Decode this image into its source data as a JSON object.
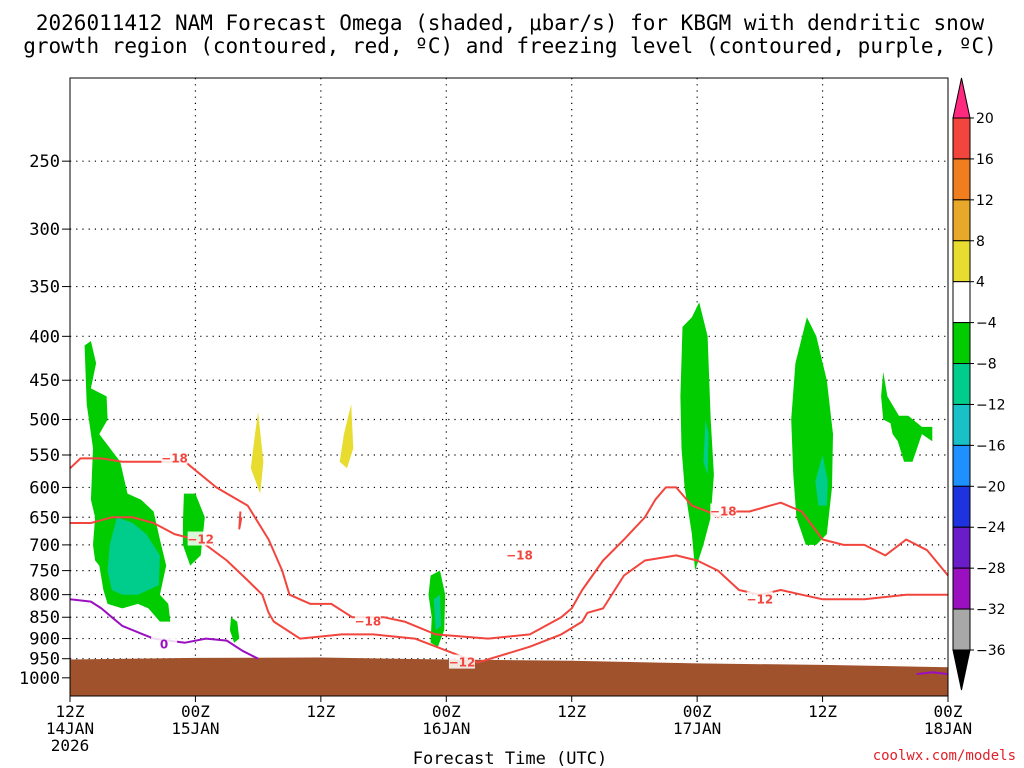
{
  "chart_data": {
    "type": "heatmap",
    "title_line1": "2026011412 NAM Forecast Omega (shaded, μbar/s) for KBGM with dendritic snow",
    "title_line2": "growth region (contoured, red, ºC) and freezing level (contoured, purple, ºC)",
    "xlabel": "Forecast Time (UTC)",
    "credit": "coolwx.com/models",
    "x_ticks": [
      {
        "hour": 0,
        "line1": "12Z",
        "line2": "14JAN",
        "line3": "2026"
      },
      {
        "hour": 12,
        "line1": "00Z",
        "line2": "15JAN",
        "line3": ""
      },
      {
        "hour": 24,
        "line1": "12Z",
        "line2": "",
        "line3": ""
      },
      {
        "hour": 36,
        "line1": "00Z",
        "line2": "16JAN",
        "line3": ""
      },
      {
        "hour": 48,
        "line1": "12Z",
        "line2": "",
        "line3": ""
      },
      {
        "hour": 60,
        "line1": "00Z",
        "line2": "17JAN",
        "line3": ""
      },
      {
        "hour": 72,
        "line1": "12Z",
        "line2": "",
        "line3": ""
      },
      {
        "hour": 84,
        "line1": "00Z",
        "line2": "18JAN",
        "line3": ""
      }
    ],
    "x_range_hours": [
      0,
      84
    ],
    "y_axis": "pressure (mb), log scale, inverted",
    "y_range_mb": [
      1050,
      200
    ],
    "y_ticks": [
      250,
      300,
      350,
      400,
      450,
      500,
      550,
      600,
      650,
      700,
      750,
      800,
      850,
      900,
      950,
      1000
    ],
    "colorbar": {
      "levels": [
        "20",
        "16",
        "12",
        "8",
        "4",
        "−4",
        "−8",
        "−12",
        "−16",
        "−20",
        "−24",
        "−28",
        "−32",
        "−36"
      ],
      "colors": [
        "#ff2a80",
        "#f2453d",
        "#f07d1e",
        "#e8a82a",
        "#e8dc30",
        "#ffffff",
        "#00cc00",
        "#00cc8c",
        "#18c0c8",
        "#1e90ff",
        "#1e32e0",
        "#6a1cc8",
        "#9a10c0",
        "#a8a8a8",
        "#000000"
      ]
    },
    "terrain_color": "#a0522d",
    "omega_regions": [
      {
        "color": "#00cc00",
        "pts": [
          [
            1.4,
            410
          ],
          [
            2,
            405
          ],
          [
            2.5,
            430
          ],
          [
            2,
            460
          ],
          [
            3.5,
            470
          ],
          [
            3.6,
            500
          ],
          [
            2.8,
            520
          ],
          [
            4.8,
            560
          ],
          [
            5.5,
            610
          ],
          [
            6.8,
            620
          ],
          [
            8,
            640
          ],
          [
            8.6,
            690
          ],
          [
            9.2,
            740
          ],
          [
            8.6,
            800
          ],
          [
            9.4,
            820
          ],
          [
            9.6,
            860
          ],
          [
            8.6,
            860
          ],
          [
            7.5,
            830
          ],
          [
            6.5,
            820
          ],
          [
            5,
            830
          ],
          [
            3.6,
            820
          ],
          [
            3.2,
            790
          ],
          [
            2.8,
            740
          ],
          [
            2.4,
            730
          ],
          [
            2.2,
            700
          ],
          [
            2.4,
            650
          ],
          [
            2,
            620
          ],
          [
            2.2,
            540
          ],
          [
            1.6,
            480
          ]
        ]
      },
      {
        "color": "#00cc8c",
        "pts": [
          [
            4.5,
            650
          ],
          [
            6,
            660
          ],
          [
            7.3,
            680
          ],
          [
            8.6,
            720
          ],
          [
            8.5,
            780
          ],
          [
            6.5,
            800
          ],
          [
            5,
            800
          ],
          [
            4,
            790
          ],
          [
            3.6,
            750
          ],
          [
            3.8,
            700
          ]
        ]
      },
      {
        "color": "#00cc00",
        "pts": [
          [
            10.9,
            610
          ],
          [
            12,
            610
          ],
          [
            12.9,
            650
          ],
          [
            12.5,
            720
          ],
          [
            11.5,
            740
          ],
          [
            10.8,
            700
          ],
          [
            10.8,
            660
          ]
        ]
      },
      {
        "color": "#e8dc30",
        "pts": [
          [
            17.7,
            520
          ],
          [
            18,
            490
          ],
          [
            18.5,
            560
          ],
          [
            18.2,
            610
          ],
          [
            17.3,
            570
          ]
        ]
      },
      {
        "color": "#e8dc30",
        "pts": [
          [
            26.2,
            520
          ],
          [
            26.9,
            480
          ],
          [
            27.1,
            540
          ],
          [
            26.5,
            570
          ],
          [
            25.8,
            560
          ]
        ]
      },
      {
        "color": "#00cc00",
        "pts": [
          [
            15.4,
            850
          ],
          [
            16,
            860
          ],
          [
            16.2,
            900
          ],
          [
            15.7,
            910
          ],
          [
            15.3,
            880
          ]
        ]
      },
      {
        "color": "#00cc00",
        "pts": [
          [
            34.5,
            760
          ],
          [
            35.4,
            750
          ],
          [
            35.9,
            800
          ],
          [
            35.8,
            880
          ],
          [
            35.2,
            920
          ],
          [
            34.5,
            910
          ],
          [
            34.6,
            850
          ],
          [
            34.3,
            800
          ]
        ]
      },
      {
        "color": "#00cc8c",
        "pts": [
          [
            34.8,
            810
          ],
          [
            35.4,
            800
          ],
          [
            35.5,
            870
          ],
          [
            35,
            880
          ]
        ]
      },
      {
        "color": "#00cc00",
        "pts": [
          [
            58.6,
            390
          ],
          [
            59.5,
            380
          ],
          [
            60.2,
            365
          ],
          [
            61,
            400
          ],
          [
            61.3,
            500
          ],
          [
            61.6,
            580
          ],
          [
            61.3,
            650
          ],
          [
            60.6,
            700
          ],
          [
            59.8,
            750
          ],
          [
            59.5,
            680
          ],
          [
            58.8,
            600
          ],
          [
            58.5,
            540
          ],
          [
            58.4,
            470
          ]
        ]
      },
      {
        "color": "#00cc8c",
        "pts": [
          [
            60.8,
            500
          ],
          [
            61.1,
            520
          ],
          [
            61,
            580
          ],
          [
            60.6,
            560
          ]
        ]
      },
      {
        "color": "#00cc00",
        "pts": [
          [
            70.5,
            380
          ],
          [
            71.4,
            400
          ],
          [
            72.4,
            450
          ],
          [
            73,
            520
          ],
          [
            72.9,
            600
          ],
          [
            72.4,
            680
          ],
          [
            71.4,
            700
          ],
          [
            70.4,
            700
          ],
          [
            69.5,
            650
          ],
          [
            69.2,
            580
          ],
          [
            69,
            500
          ],
          [
            69.4,
            430
          ]
        ]
      },
      {
        "color": "#00cc8c",
        "pts": [
          [
            72,
            550
          ],
          [
            72.5,
            590
          ],
          [
            72.4,
            630
          ],
          [
            71.6,
            630
          ],
          [
            71.3,
            590
          ]
        ]
      },
      {
        "color": "#00cc00",
        "pts": [
          [
            77.8,
            440
          ],
          [
            78.2,
            470
          ],
          [
            79.3,
            495
          ],
          [
            80.2,
            495
          ],
          [
            81.5,
            510
          ],
          [
            82.5,
            510
          ],
          [
            82.5,
            530
          ],
          [
            81.5,
            520
          ],
          [
            80.6,
            560
          ],
          [
            79.8,
            560
          ],
          [
            79.2,
            530
          ],
          [
            78.7,
            520
          ],
          [
            78.5,
            505
          ],
          [
            77.8,
            500
          ],
          [
            77.6,
            470
          ]
        ]
      }
    ],
    "isotherm_red": [
      {
        "label": "−18",
        "pts": [
          [
            0,
            570
          ],
          [
            1,
            555
          ],
          [
            3,
            555
          ],
          [
            5,
            560
          ],
          [
            8,
            560
          ],
          [
            11,
            560
          ],
          [
            14,
            600
          ],
          [
            17,
            630
          ],
          [
            19,
            690
          ],
          [
            20.3,
            750
          ],
          [
            21,
            800
          ],
          [
            23,
            820
          ],
          [
            25,
            820
          ],
          [
            27,
            850
          ],
          [
            30,
            850
          ],
          [
            32,
            860
          ],
          [
            35,
            890
          ],
          [
            40,
            900
          ],
          [
            44,
            890
          ],
          [
            47,
            850
          ],
          [
            48,
            830
          ],
          [
            49,
            790
          ],
          [
            51,
            730
          ],
          [
            53,
            690
          ],
          [
            55,
            650
          ],
          [
            56,
            620
          ],
          [
            57,
            600
          ],
          [
            58,
            600
          ],
          [
            59.5,
            630
          ],
          [
            61,
            640
          ],
          [
            62,
            650
          ],
          [
            63,
            640
          ],
          [
            65,
            640
          ],
          [
            67,
            630
          ],
          [
            68,
            625
          ],
          [
            70,
            640
          ],
          [
            72,
            690
          ],
          [
            74,
            700
          ],
          [
            76,
            700
          ],
          [
            78,
            720
          ],
          [
            80,
            690
          ],
          [
            82,
            710
          ],
          [
            84,
            760
          ]
        ]
      },
      {
        "label": "−12",
        "pts": [
          [
            0,
            660
          ],
          [
            2,
            660
          ],
          [
            4,
            650
          ],
          [
            6,
            650
          ],
          [
            8,
            660
          ],
          [
            10,
            680
          ],
          [
            12,
            690
          ],
          [
            13,
            700
          ],
          [
            15,
            730
          ],
          [
            17,
            770
          ],
          [
            18.4,
            800
          ],
          [
            19,
            840
          ],
          [
            19.5,
            860
          ],
          [
            22,
            900
          ],
          [
            26,
            890
          ],
          [
            29,
            890
          ],
          [
            33,
            900
          ],
          [
            39,
            960
          ],
          [
            44,
            920
          ],
          [
            47,
            890
          ],
          [
            49,
            860
          ],
          [
            49.5,
            840
          ],
          [
            51,
            830
          ],
          [
            53,
            760
          ],
          [
            55,
            730
          ],
          [
            58,
            720
          ],
          [
            60,
            730
          ],
          [
            62,
            750
          ],
          [
            64,
            790
          ],
          [
            66,
            800
          ],
          [
            68,
            790
          ],
          [
            70,
            800
          ],
          [
            72,
            810
          ],
          [
            76,
            810
          ],
          [
            80,
            800
          ],
          [
            84,
            800
          ]
        ]
      },
      {
        "label": "",
        "pts": [
          [
            16.3,
            640
          ],
          [
            16.2,
            670
          ],
          [
            16.4,
            650
          ]
        ]
      }
    ],
    "isotherm_purple": [
      {
        "label": "0",
        "pts": [
          [
            0,
            810
          ],
          [
            2,
            815
          ],
          [
            3,
            830
          ],
          [
            4,
            850
          ],
          [
            5,
            870
          ],
          [
            7,
            890
          ],
          [
            8,
            900
          ],
          [
            11,
            910
          ],
          [
            13,
            900
          ],
          [
            15,
            905
          ],
          [
            16.5,
            930
          ],
          [
            18,
            950
          ]
        ]
      },
      {
        "label": "",
        "pts": [
          [
            81,
            990
          ],
          [
            82.5,
            985
          ],
          [
            84,
            990
          ]
        ]
      }
    ],
    "terrain_top_mb": [
      [
        0,
        952
      ],
      [
        12,
        948
      ],
      [
        24,
        947
      ],
      [
        36,
        952
      ],
      [
        48,
        955
      ],
      [
        60,
        962
      ],
      [
        72,
        966
      ],
      [
        84,
        972
      ]
    ]
  }
}
